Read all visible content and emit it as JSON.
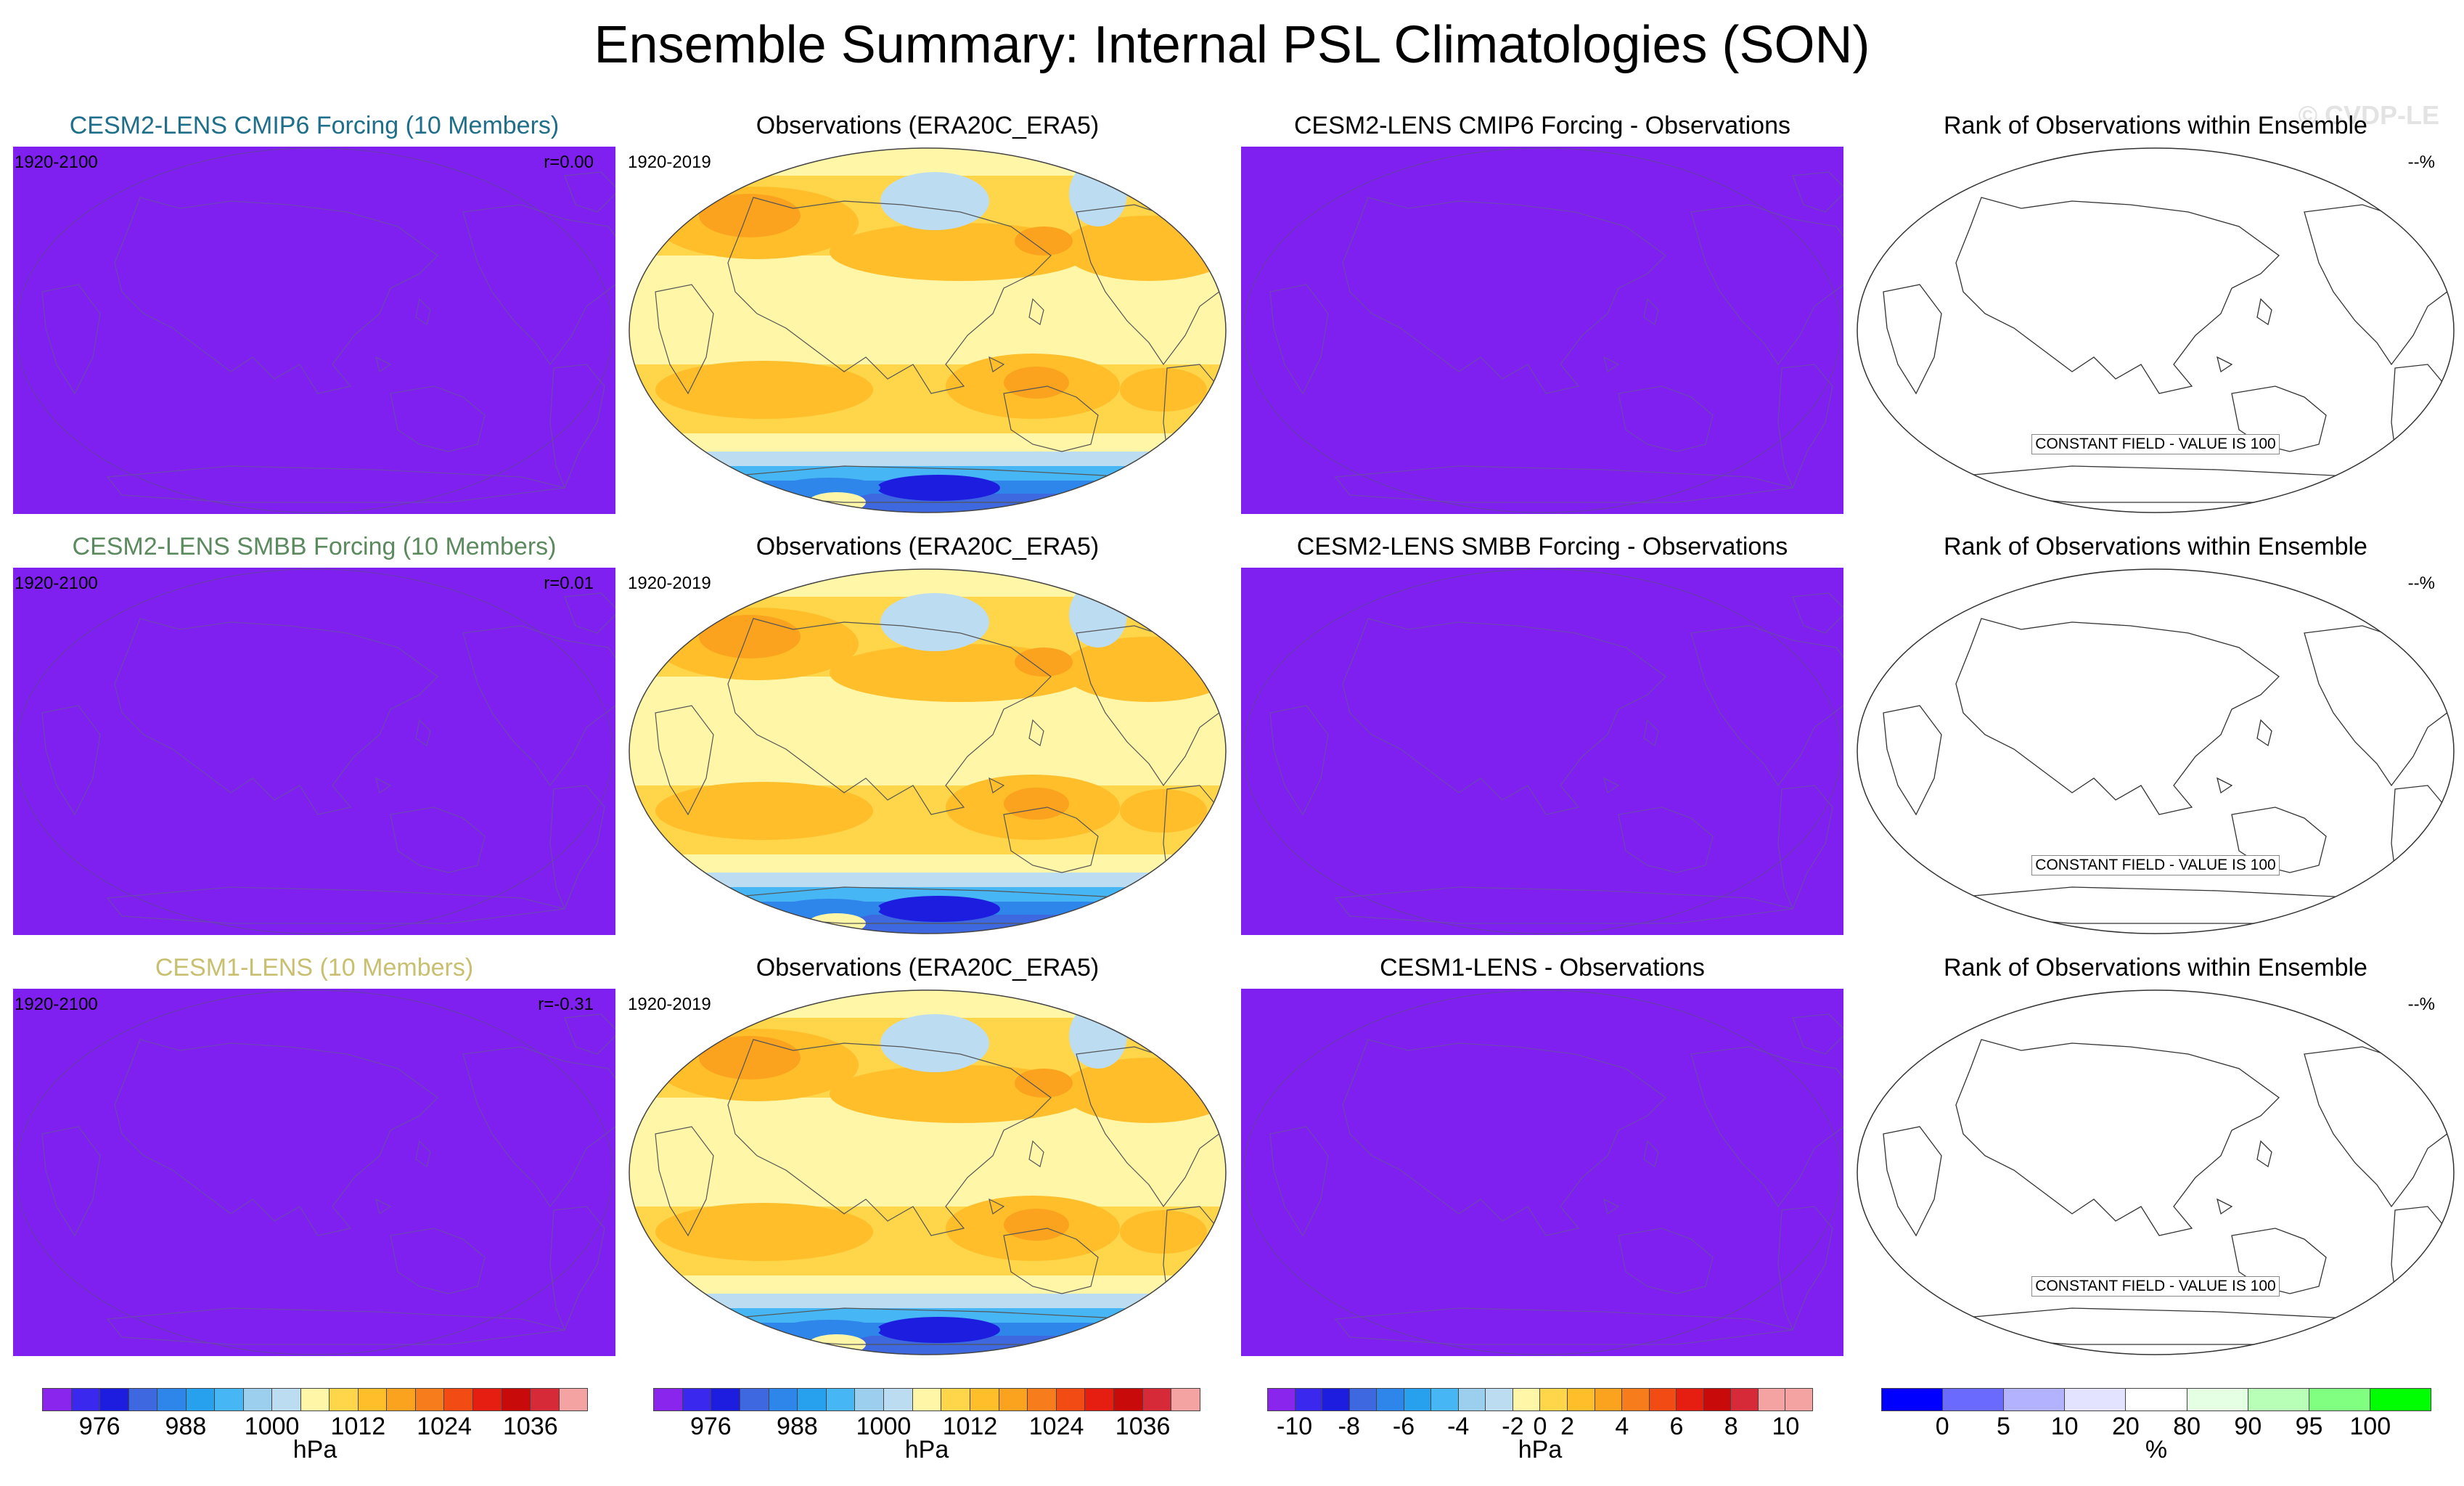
{
  "title": "Ensemble Summary: Internal PSL Climatologies (SON)",
  "watermark": "© CVDP-LE",
  "colors": {
    "purple_field": "#8020f0",
    "pressure_scale": [
      "#8a25ee",
      "#3b28ee",
      "#1d1de0",
      "#3e68e0",
      "#2f86ea",
      "#27a0ee",
      "#47b6f4",
      "#9ccfee",
      "#bcdcf2",
      "#fff6a8",
      "#ffd54a",
      "#ffbe2a",
      "#fba31e",
      "#f77d1c",
      "#f24c14",
      "#e61e12",
      "#c80a0a",
      "#d62a38",
      "#f5a2a2"
    ],
    "rank_scale": [
      "#0000ff",
      "#6a6aff",
      "#b2b2ff",
      "#e3e3ff",
      "#ffffff",
      "#e5ffe5",
      "#b8ffb8",
      "#80ff80",
      "#00ff00"
    ]
  },
  "rows": [
    {
      "model_title": "CESM2-LENS CMIP6 Forcing (10 Members)",
      "model_period": "1920-2100",
      "model_r": "r=0.00",
      "obs_title": "Observations (ERA20C_ERA5)",
      "obs_period": "1920-2019",
      "diff_title": "CESM2-LENS CMIP6 Forcing - Observations",
      "rank_title": "Rank of Observations within Ensemble",
      "rank_pct": "--%",
      "rank_note": "CONSTANT FIELD - VALUE IS 100"
    },
    {
      "model_title": "CESM2-LENS SMBB Forcing (10 Members)",
      "model_period": "1920-2100",
      "model_r": "r=0.01",
      "obs_title": "Observations (ERA20C_ERA5)",
      "obs_period": "1920-2019",
      "diff_title": "CESM2-LENS SMBB Forcing - Observations",
      "rank_title": "Rank of Observations within Ensemble",
      "rank_pct": "--%",
      "rank_note": "CONSTANT FIELD - VALUE IS 100"
    },
    {
      "model_title": "CESM1-LENS (10 Members)",
      "model_period": "1920-2100",
      "model_r": "r=-0.31",
      "obs_title": "Observations (ERA20C_ERA5)",
      "obs_period": "1920-2019",
      "diff_title": "CESM1-LENS - Observations",
      "rank_title": "Rank of Observations within Ensemble",
      "rank_pct": "--%",
      "rank_note": "CONSTANT FIELD - VALUE IS 100"
    }
  ],
  "colorbars": [
    {
      "unit": "hPa",
      "ticks": [
        "976",
        "988",
        "1000",
        "1012",
        "1024",
        "1036"
      ],
      "tick_positions": [
        2,
        5,
        8,
        11,
        14,
        17
      ],
      "n_boxes": 19
    },
    {
      "unit": "hPa",
      "ticks": [
        "976",
        "988",
        "1000",
        "1012",
        "1024",
        "1036"
      ],
      "tick_positions": [
        2,
        5,
        8,
        11,
        14,
        17
      ],
      "n_boxes": 19
    },
    {
      "unit": "hPa",
      "ticks": [
        "-10",
        "-8",
        "-6",
        "-4",
        "-2",
        "0",
        "2",
        "4",
        "6",
        "8",
        "10"
      ],
      "tick_positions": [
        1,
        3,
        5,
        7,
        9,
        10,
        11,
        13,
        15,
        17,
        19
      ],
      "n_boxes": 20
    },
    {
      "unit": "%",
      "ticks": [
        "0",
        "5",
        "10",
        "20",
        "80",
        "90",
        "95",
        "100"
      ],
      "tick_positions": [
        1,
        2,
        3,
        4,
        5,
        6,
        7,
        8
      ],
      "n_boxes": 9
    }
  ],
  "chart_data": [
    {
      "type": "heatmap",
      "title": "CESM2-LENS CMIP6 Forcing (10 Members)",
      "period": "1920-2100",
      "pattern_correlation": 0.0,
      "field": "PSL climatology (SON)",
      "units": "hPa",
      "note": "uniform field"
    },
    {
      "type": "heatmap",
      "title": "Observations (ERA20C_ERA5)",
      "period": "1920-2019",
      "field": "PSL climatology (SON)",
      "units": "hPa",
      "levels": [
        972,
        976,
        980,
        984,
        988,
        992,
        996,
        1000,
        1004,
        1008,
        1012,
        1016,
        1020,
        1024,
        1028,
        1032,
        1036,
        1040
      ]
    },
    {
      "type": "heatmap",
      "title": "CESM2-LENS CMIP6 Forcing - Observations",
      "units": "hPa",
      "levels": [
        -10,
        -9,
        -8,
        -7,
        -6,
        -5,
        -4,
        -3,
        -2,
        -1,
        0,
        1,
        2,
        3,
        4,
        5,
        6,
        7,
        8,
        9,
        10
      ],
      "note": "uniform field"
    },
    {
      "type": "heatmap",
      "title": "Rank of Observations within Ensemble",
      "units": "%",
      "levels": [
        0,
        5,
        10,
        20,
        80,
        90,
        95,
        100
      ],
      "note": "CONSTANT FIELD - VALUE IS 100"
    },
    {
      "type": "heatmap",
      "title": "CESM2-LENS SMBB Forcing (10 Members)",
      "period": "1920-2100",
      "pattern_correlation": 0.01,
      "units": "hPa"
    },
    {
      "type": "heatmap",
      "title": "CESM1-LENS (10 Members)",
      "period": "1920-2100",
      "pattern_correlation": -0.31,
      "units": "hPa"
    }
  ]
}
